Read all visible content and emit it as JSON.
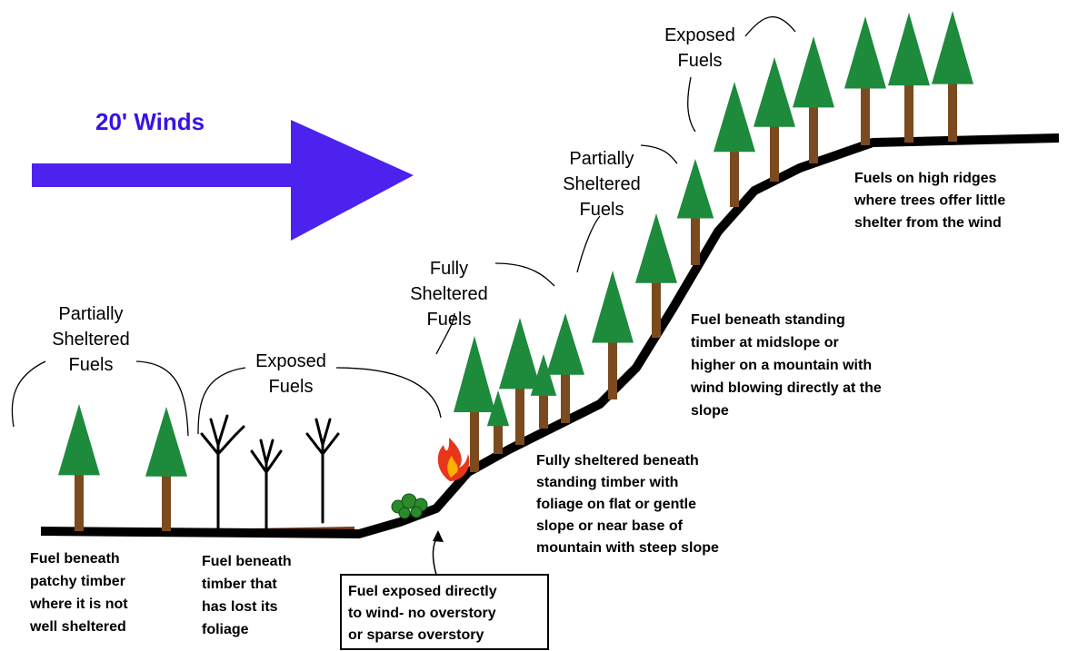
{
  "wind_label": "20' Winds",
  "zone_labels": [
    {
      "lines": [
        "Partially",
        "Sheltered",
        "Fuels"
      ]
    },
    {
      "lines": [
        "Exposed",
        "Fuels"
      ]
    },
    {
      "lines": [
        "Fully",
        "Sheltered",
        "Fuels"
      ]
    },
    {
      "lines": [
        "Partially",
        "Sheltered",
        "Fuels"
      ]
    },
    {
      "lines": [
        "Exposed",
        "Fuels"
      ]
    }
  ],
  "descriptions": [
    {
      "lines": [
        "Fuel beneath",
        "patchy timber",
        "where it is not",
        "well sheltered"
      ]
    },
    {
      "lines": [
        "Fuel beneath",
        "timber that",
        "has lost its",
        "foliage"
      ]
    },
    {
      "lines": [
        "Fuel exposed directly",
        "to wind- no overstory",
        "or sparse overstory"
      ]
    },
    {
      "lines": [
        "Fully sheltered beneath",
        "standing timber with",
        "foliage on flat or gentle",
        "slope or near base of",
        "mountain with steep slope"
      ]
    },
    {
      "lines": [
        "Fuel beneath standing",
        "timber at midslope or",
        "higher on a mountain with",
        "wind blowing directly at the",
        "slope"
      ]
    },
    {
      "lines": [
        "Fuels on high ridges",
        "where trees offer little",
        "shelter from the wind"
      ]
    }
  ]
}
